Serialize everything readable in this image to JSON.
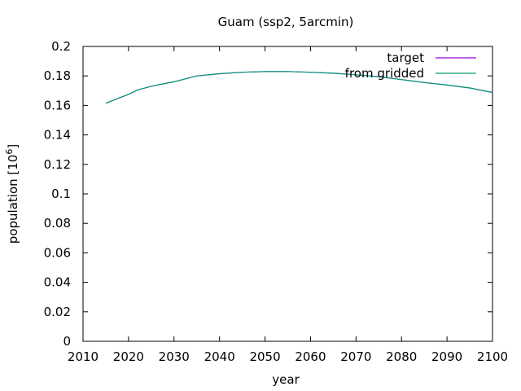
{
  "chart_data": {
    "type": "line",
    "title": "Guam (ssp2, 5arcmin)",
    "xlabel": "year",
    "ylabel_main": "population [10",
    "ylabel_exp": "6",
    "ylabel_close": "]",
    "xlim": [
      2010,
      2100
    ],
    "ylim": [
      0,
      0.2
    ],
    "xticks": [
      "2010",
      "2020",
      "2030",
      "2040",
      "2050",
      "2060",
      "2070",
      "2080",
      "2090",
      "2100"
    ],
    "yticks": [
      "0",
      "0.02",
      "0.04",
      "0.06",
      "0.08",
      "0.1",
      "0.12",
      "0.14",
      "0.16",
      "0.18",
      "0.2"
    ],
    "legend_position": "top-right",
    "grid": false,
    "x": [
      2015,
      2020,
      2022,
      2025,
      2030,
      2035,
      2040,
      2045,
      2050,
      2055,
      2060,
      2065,
      2070,
      2075,
      2080,
      2085,
      2090,
      2095,
      2100
    ],
    "series": [
      {
        "name": "target",
        "color": "#9400d3",
        "values": [
          0.1615,
          0.1675,
          0.1705,
          0.173,
          0.176,
          0.18,
          0.1815,
          0.1825,
          0.183,
          0.183,
          0.1825,
          0.1818,
          0.1808,
          0.1795,
          0.1775,
          0.1755,
          0.1738,
          0.1718,
          0.1688
        ]
      },
      {
        "name": "from gridded",
        "color": "#009e73",
        "values": [
          0.1615,
          0.1675,
          0.1705,
          0.173,
          0.176,
          0.18,
          0.1815,
          0.1825,
          0.183,
          0.183,
          0.1825,
          0.1818,
          0.1808,
          0.1795,
          0.1775,
          0.1755,
          0.1738,
          0.1718,
          0.1688
        ]
      }
    ]
  }
}
